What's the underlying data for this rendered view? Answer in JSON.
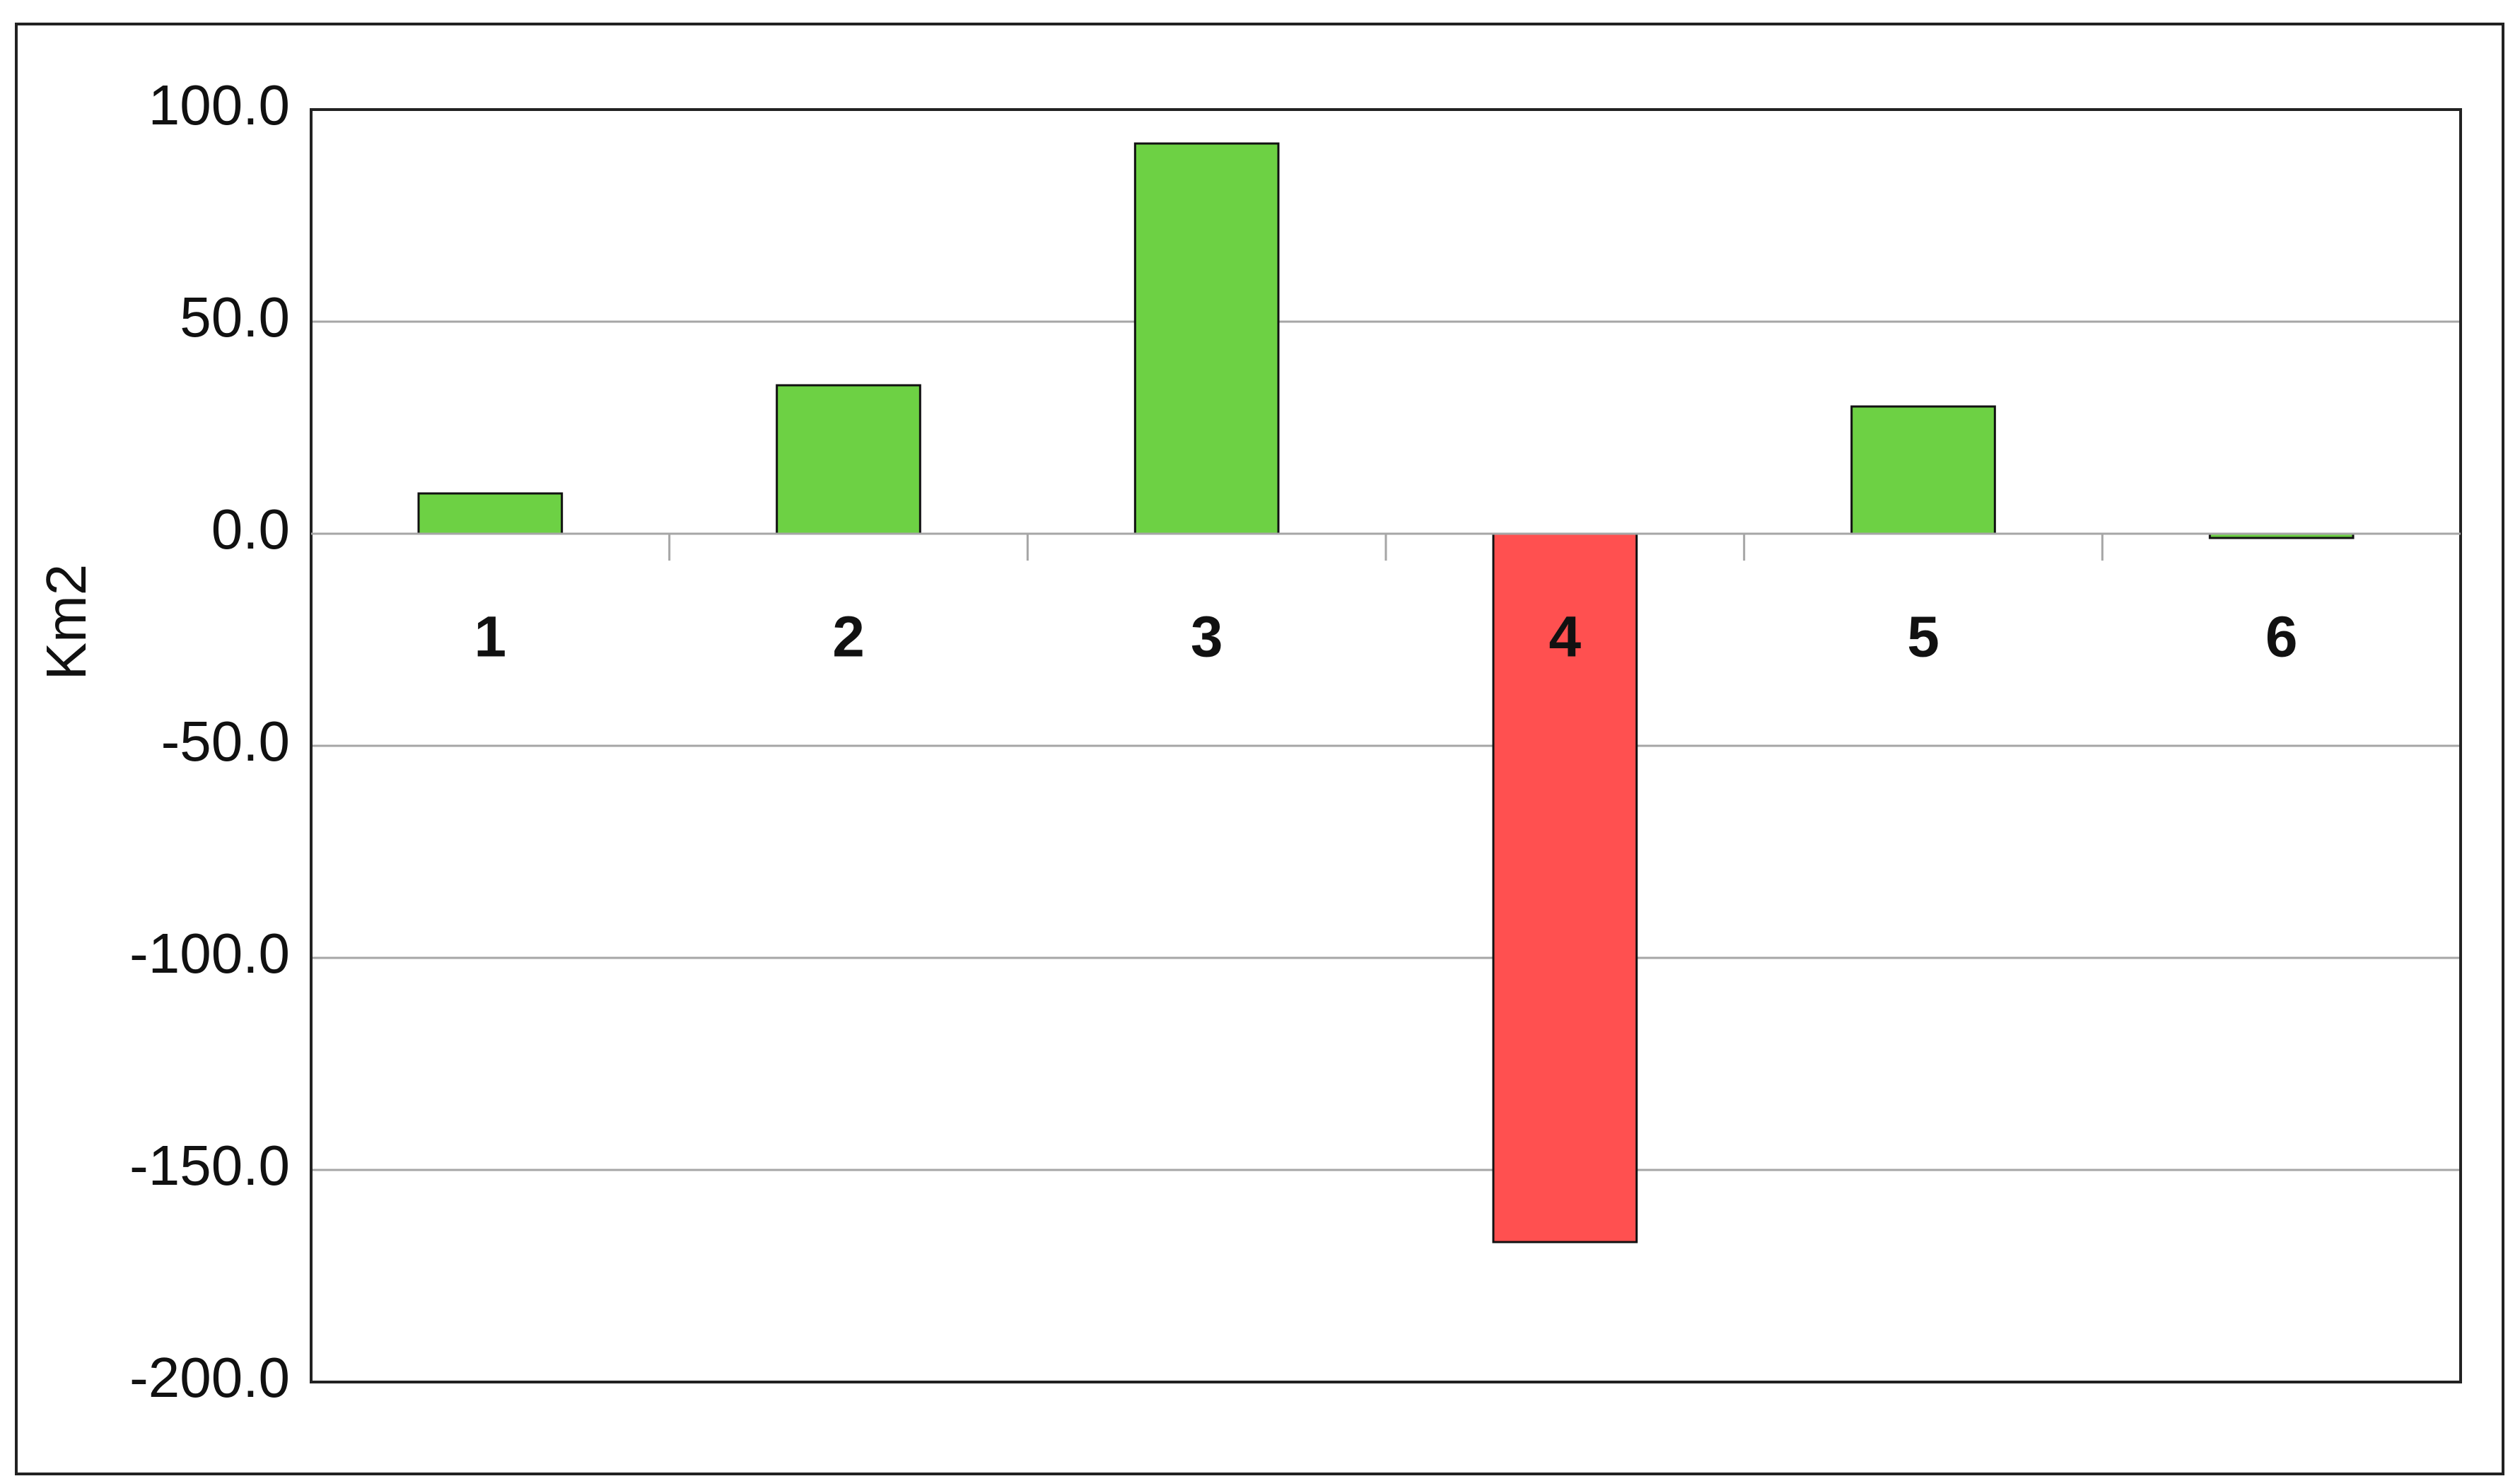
{
  "chart_data": {
    "type": "bar",
    "y_label": "Km2",
    "categories": [
      "1",
      "2",
      "3",
      "4",
      "5",
      "6"
    ],
    "values": [
      9.5,
      35,
      92,
      -167,
      30,
      -1
    ],
    "colors": [
      "#6dd144",
      "#6dd144",
      "#6dd144",
      "#ff5050",
      "#6dd144",
      "#6dd144"
    ],
    "ylim": [
      -200,
      100
    ],
    "yticks": [
      {
        "value": -200,
        "label": "-200.0"
      },
      {
        "value": -150,
        "label": "-150.0"
      },
      {
        "value": -100,
        "label": "-100.0"
      },
      {
        "value": -50,
        "label": "-50.0"
      },
      {
        "value": 0,
        "label": "0.0"
      },
      {
        "value": 50,
        "label": "50.0"
      },
      {
        "value": 100,
        "label": "100.0"
      }
    ],
    "grid": true
  }
}
